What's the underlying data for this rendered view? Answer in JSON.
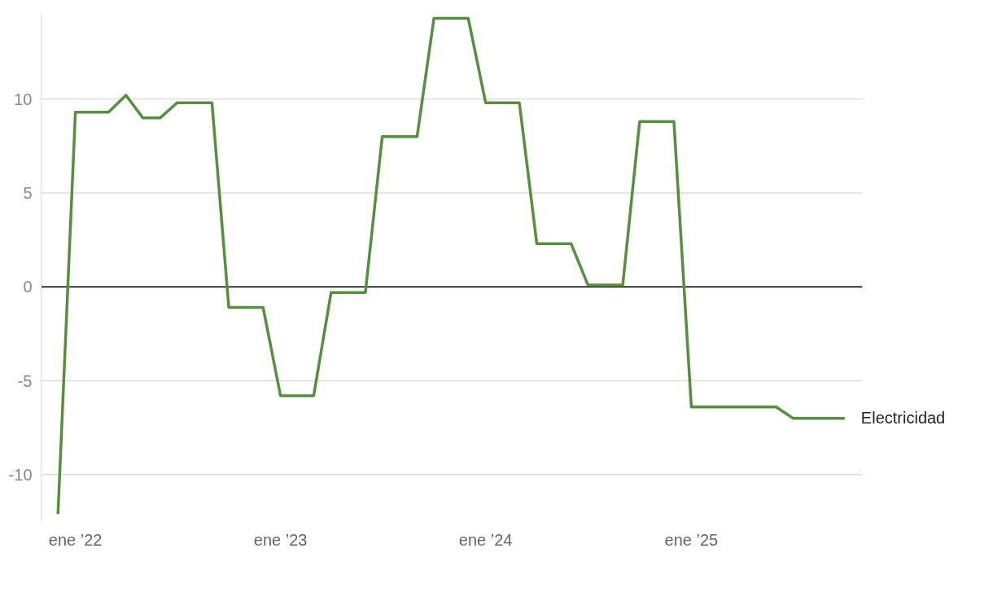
{
  "chart_data": {
    "type": "line",
    "x": [
      "2021-12",
      "2022-01",
      "2022-02",
      "2022-03",
      "2022-04",
      "2022-05",
      "2022-06",
      "2022-07",
      "2022-08",
      "2022-09",
      "2022-10",
      "2022-11",
      "2022-12",
      "2023-01",
      "2023-02",
      "2023-03",
      "2023-04",
      "2023-05",
      "2023-06",
      "2023-07",
      "2023-08",
      "2023-09",
      "2023-10",
      "2023-11",
      "2023-12",
      "2024-01",
      "2024-02",
      "2024-03",
      "2024-04",
      "2024-05",
      "2024-06",
      "2024-07",
      "2024-08",
      "2024-09",
      "2024-10",
      "2024-11",
      "2024-12",
      "2025-01",
      "2025-02",
      "2025-03",
      "2025-04",
      "2025-05",
      "2025-06",
      "2025-07",
      "2025-08",
      "2025-09",
      "2025-10"
    ],
    "series": [
      {
        "name": "Electricidad",
        "color": "#56903f",
        "values": [
          -12.1,
          9.3,
          9.3,
          9.3,
          10.2,
          9.0,
          9.0,
          9.8,
          9.8,
          9.8,
          -1.1,
          -1.1,
          -1.1,
          -5.8,
          -5.8,
          -5.8,
          -0.3,
          -0.3,
          -0.3,
          8.0,
          8.0,
          8.0,
          14.3,
          14.3,
          14.3,
          9.8,
          9.8,
          9.8,
          2.3,
          2.3,
          2.3,
          0.1,
          0.1,
          0.1,
          8.8,
          8.8,
          8.8,
          -6.4,
          -6.4,
          -6.4,
          -6.4,
          -6.4,
          -6.4,
          -7.0,
          -7.0,
          -7.0,
          -7.0
        ]
      }
    ],
    "xlim": [
      "2021-11-01",
      "2025-11-01"
    ],
    "xticks": [
      {
        "value": "2022-01-01",
        "label": "ene ’22"
      },
      {
        "value": "2023-01-01",
        "label": "ene ’23"
      },
      {
        "value": "2024-01-01",
        "label": "ene ’24"
      },
      {
        "value": "2025-01-01",
        "label": "ene ’25"
      }
    ],
    "ylim": [
      -12.5,
      14.6
    ],
    "yticks": [
      -10,
      -5,
      0,
      5,
      10
    ],
    "ref_lines": [
      {
        "axis": "y",
        "value": 0,
        "color": "#000000"
      }
    ],
    "grid": "y",
    "legend": false,
    "marker": "none",
    "line_style": "solid"
  }
}
